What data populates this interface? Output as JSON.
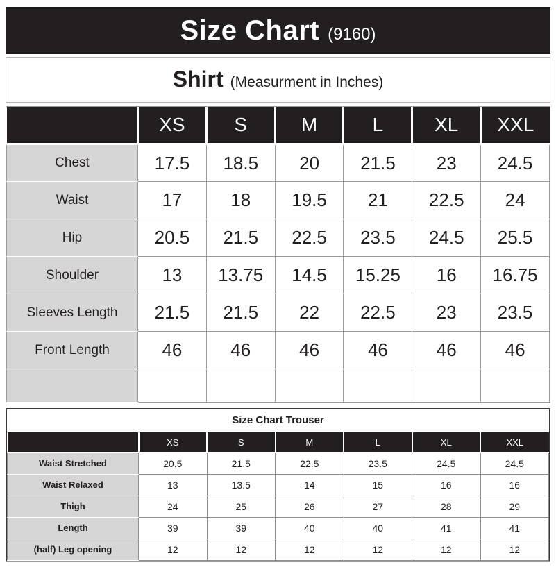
{
  "header": {
    "title": "Size Chart",
    "code": "(9160)"
  },
  "shirt": {
    "title": "Shirt",
    "note": "(Measurment in Inches)",
    "sizes": [
      "XS",
      "S",
      "M",
      "L",
      "XL",
      "XXL"
    ],
    "rows": [
      {
        "label": "Chest",
        "values": [
          "17.5",
          "18.5",
          "20",
          "21.5",
          "23",
          "24.5"
        ]
      },
      {
        "label": "Waist",
        "values": [
          "17",
          "18",
          "19.5",
          "21",
          "22.5",
          "24"
        ]
      },
      {
        "label": "Hip",
        "values": [
          "20.5",
          "21.5",
          "22.5",
          "23.5",
          "24.5",
          "25.5"
        ]
      },
      {
        "label": "Shoulder",
        "values": [
          "13",
          "13.75",
          "14.5",
          "15.25",
          "16",
          "16.75"
        ]
      },
      {
        "label": "Sleeves Length",
        "values": [
          "21.5",
          "21.5",
          "22",
          "22.5",
          "23",
          "23.5"
        ]
      },
      {
        "label": "Front Length",
        "values": [
          "46",
          "46",
          "46",
          "46",
          "46",
          "46"
        ]
      },
      {
        "label": "",
        "values": [
          "",
          "",
          "",
          "",
          "",
          ""
        ]
      }
    ]
  },
  "trouser": {
    "title": "Size Chart Trouser",
    "sizes": [
      "XS",
      "S",
      "M",
      "L",
      "XL",
      "XXL"
    ],
    "rows": [
      {
        "label": "Waist Stretched",
        "values": [
          "20.5",
          "21.5",
          "22.5",
          "23.5",
          "24.5",
          "24.5"
        ]
      },
      {
        "label": "Waist Relaxed",
        "values": [
          "13",
          "13.5",
          "14",
          "15",
          "16",
          "16"
        ]
      },
      {
        "label": "Thigh",
        "values": [
          "24",
          "25",
          "26",
          "27",
          "28",
          "29"
        ]
      },
      {
        "label": "Length",
        "values": [
          "39",
          "39",
          "40",
          "40",
          "41",
          "41"
        ]
      },
      {
        "label": "(half) Leg opening",
        "values": [
          "12",
          "12",
          "12",
          "12",
          "12",
          "12"
        ]
      }
    ]
  },
  "colors": {
    "band_black": "#231f20",
    "label_gray": "#d6d6d6",
    "grid_gray": "#9a9a9a",
    "header_text": "#ffffff"
  }
}
